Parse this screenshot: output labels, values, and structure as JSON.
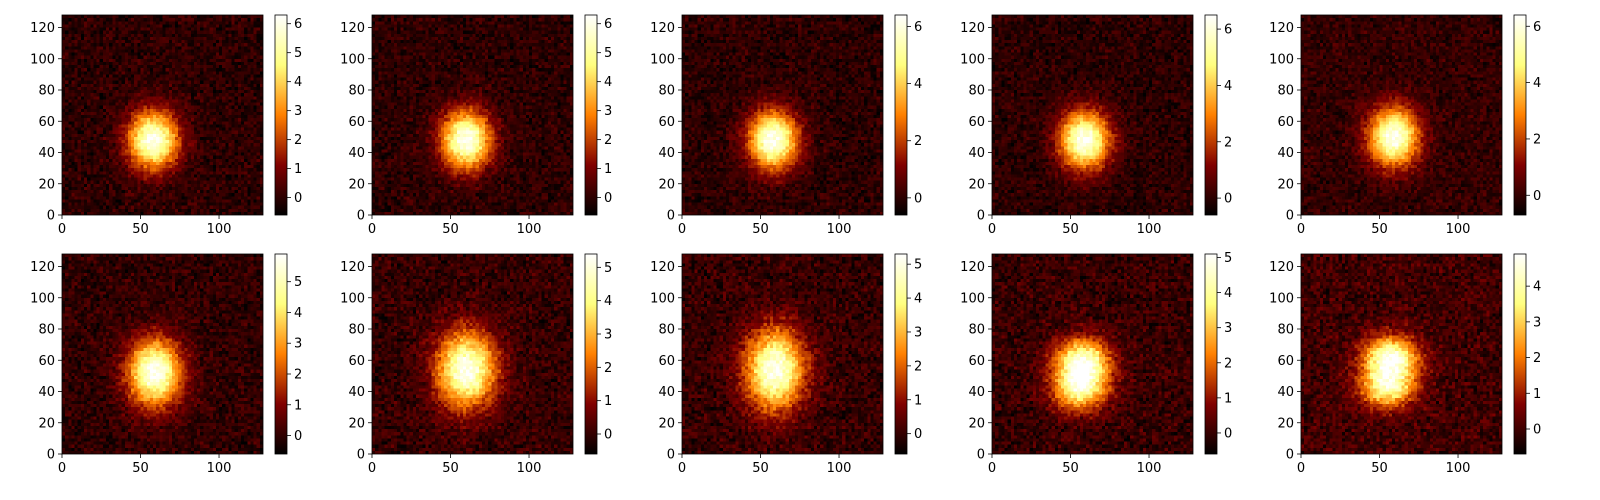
{
  "chart_data": {
    "type": "heatmap",
    "colormap": "afmhot",
    "grid": false,
    "legend": "none",
    "panel_grid": {
      "rows": 2,
      "cols": 5
    },
    "panels": [
      {
        "row": 0,
        "col": 0,
        "xlim": [
          0,
          128
        ],
        "ylim": [
          0,
          128
        ],
        "x_ticks": [
          "0",
          "50",
          "100"
        ],
        "y_ticks": [
          "0",
          "20",
          "40",
          "60",
          "80",
          "100",
          "120"
        ],
        "clim": [
          -0.6,
          6.3
        ],
        "colorbar_ticks": [
          "0",
          "1",
          "2",
          "3",
          "4",
          "5",
          "6"
        ],
        "blobs": [
          {
            "cx": 58,
            "cy": 48,
            "sx": 11,
            "sy": 13,
            "amp": 6.2
          }
        ]
      },
      {
        "row": 0,
        "col": 1,
        "xlim": [
          0,
          128
        ],
        "ylim": [
          0,
          128
        ],
        "x_ticks": [
          "0",
          "50",
          "100"
        ],
        "y_ticks": [
          "0",
          "20",
          "40",
          "60",
          "80",
          "100",
          "120"
        ],
        "clim": [
          -0.6,
          6.3
        ],
        "colorbar_ticks": [
          "0",
          "1",
          "2",
          "3",
          "4",
          "5",
          "6"
        ],
        "blobs": [
          {
            "cx": 60,
            "cy": 48,
            "sx": 11,
            "sy": 13,
            "amp": 6.2
          }
        ]
      },
      {
        "row": 0,
        "col": 2,
        "xlim": [
          0,
          128
        ],
        "ylim": [
          0,
          128
        ],
        "x_ticks": [
          "0",
          "50",
          "100"
        ],
        "y_ticks": [
          "0",
          "20",
          "40",
          "60",
          "80",
          "100",
          "120"
        ],
        "clim": [
          -0.6,
          6.4
        ],
        "colorbar_ticks": [
          "0",
          "2",
          "4",
          "6"
        ],
        "blobs": [
          {
            "cx": 58,
            "cy": 48,
            "sx": 11,
            "sy": 13,
            "amp": 6.3
          }
        ]
      },
      {
        "row": 0,
        "col": 3,
        "xlim": [
          0,
          128
        ],
        "ylim": [
          0,
          128
        ],
        "x_ticks": [
          "0",
          "50",
          "100"
        ],
        "y_ticks": [
          "0",
          "20",
          "40",
          "60",
          "80",
          "100",
          "120"
        ],
        "clim": [
          -0.6,
          6.5
        ],
        "colorbar_ticks": [
          "0",
          "2",
          "4",
          "6"
        ],
        "blobs": [
          {
            "cx": 59,
            "cy": 48,
            "sx": 11,
            "sy": 13,
            "amp": 6.4
          }
        ]
      },
      {
        "row": 0,
        "col": 4,
        "xlim": [
          0,
          128
        ],
        "ylim": [
          0,
          128
        ],
        "x_ticks": [
          "0",
          "50",
          "100"
        ],
        "y_ticks": [
          "0",
          "20",
          "40",
          "60",
          "80",
          "100",
          "120"
        ],
        "clim": [
          -0.7,
          6.4
        ],
        "colorbar_ticks": [
          "0",
          "2",
          "4",
          "6"
        ],
        "blobs": [
          {
            "cx": 59,
            "cy": 50,
            "sx": 11,
            "sy": 13,
            "amp": 6.3
          }
        ]
      },
      {
        "row": 1,
        "col": 0,
        "xlim": [
          0,
          128
        ],
        "ylim": [
          0,
          128
        ],
        "x_ticks": [
          "0",
          "50",
          "100"
        ],
        "y_ticks": [
          "0",
          "20",
          "40",
          "60",
          "80",
          "100",
          "120"
        ],
        "clim": [
          -0.6,
          5.9
        ],
        "colorbar_ticks": [
          "0",
          "1",
          "2",
          "3",
          "4",
          "5"
        ],
        "blobs": [
          {
            "cx": 59,
            "cy": 52,
            "sx": 12,
            "sy": 15,
            "amp": 5.8
          }
        ]
      },
      {
        "row": 1,
        "col": 1,
        "xlim": [
          0,
          128
        ],
        "ylim": [
          0,
          128
        ],
        "x_ticks": [
          "0",
          "50",
          "100"
        ],
        "y_ticks": [
          "0",
          "20",
          "40",
          "60",
          "80",
          "100",
          "120"
        ],
        "clim": [
          -0.6,
          5.4
        ],
        "colorbar_ticks": [
          "0",
          "1",
          "2",
          "3",
          "4",
          "5"
        ],
        "blobs": [
          {
            "cx": 60,
            "cy": 54,
            "sx": 13,
            "sy": 17,
            "amp": 5.3
          }
        ]
      },
      {
        "row": 1,
        "col": 2,
        "xlim": [
          0,
          128
        ],
        "ylim": [
          0,
          128
        ],
        "x_ticks": [
          "0",
          "50",
          "100"
        ],
        "y_ticks": [
          "0",
          "20",
          "40",
          "60",
          "80",
          "100",
          "120"
        ],
        "clim": [
          -0.6,
          5.3
        ],
        "colorbar_ticks": [
          "0",
          "1",
          "2",
          "3",
          "4",
          "5"
        ],
        "blobs": [
          {
            "cx": 59,
            "cy": 54,
            "sx": 13,
            "sy": 18,
            "amp": 5.2
          }
        ]
      },
      {
        "row": 1,
        "col": 3,
        "xlim": [
          0,
          128
        ],
        "ylim": [
          0,
          128
        ],
        "x_ticks": [
          "0",
          "50",
          "100"
        ],
        "y_ticks": [
          "0",
          "20",
          "40",
          "60",
          "80",
          "100",
          "120"
        ],
        "clim": [
          -0.6,
          5.1
        ],
        "colorbar_ticks": [
          "0",
          "1",
          "2",
          "3",
          "4",
          "5"
        ],
        "blobs": [
          {
            "cx": 58,
            "cy": 60,
            "sx": 12,
            "sy": 10,
            "amp": 4.4
          },
          {
            "cx": 56,
            "cy": 42,
            "sx": 12,
            "sy": 10,
            "amp": 4.0
          }
        ]
      },
      {
        "row": 1,
        "col": 4,
        "xlim": [
          0,
          128
        ],
        "ylim": [
          0,
          128
        ],
        "x_ticks": [
          "0",
          "50",
          "100"
        ],
        "y_ticks": [
          "0",
          "20",
          "40",
          "60",
          "80",
          "100",
          "120"
        ],
        "clim": [
          -0.7,
          4.9
        ],
        "colorbar_ticks": [
          "0",
          "1",
          "2",
          "3",
          "4"
        ],
        "blobs": [
          {
            "cx": 57,
            "cy": 61,
            "sx": 12,
            "sy": 10,
            "amp": 4.6
          },
          {
            "cx": 55,
            "cy": 42,
            "sx": 12,
            "sy": 9,
            "amp": 3.6
          }
        ]
      }
    ]
  }
}
